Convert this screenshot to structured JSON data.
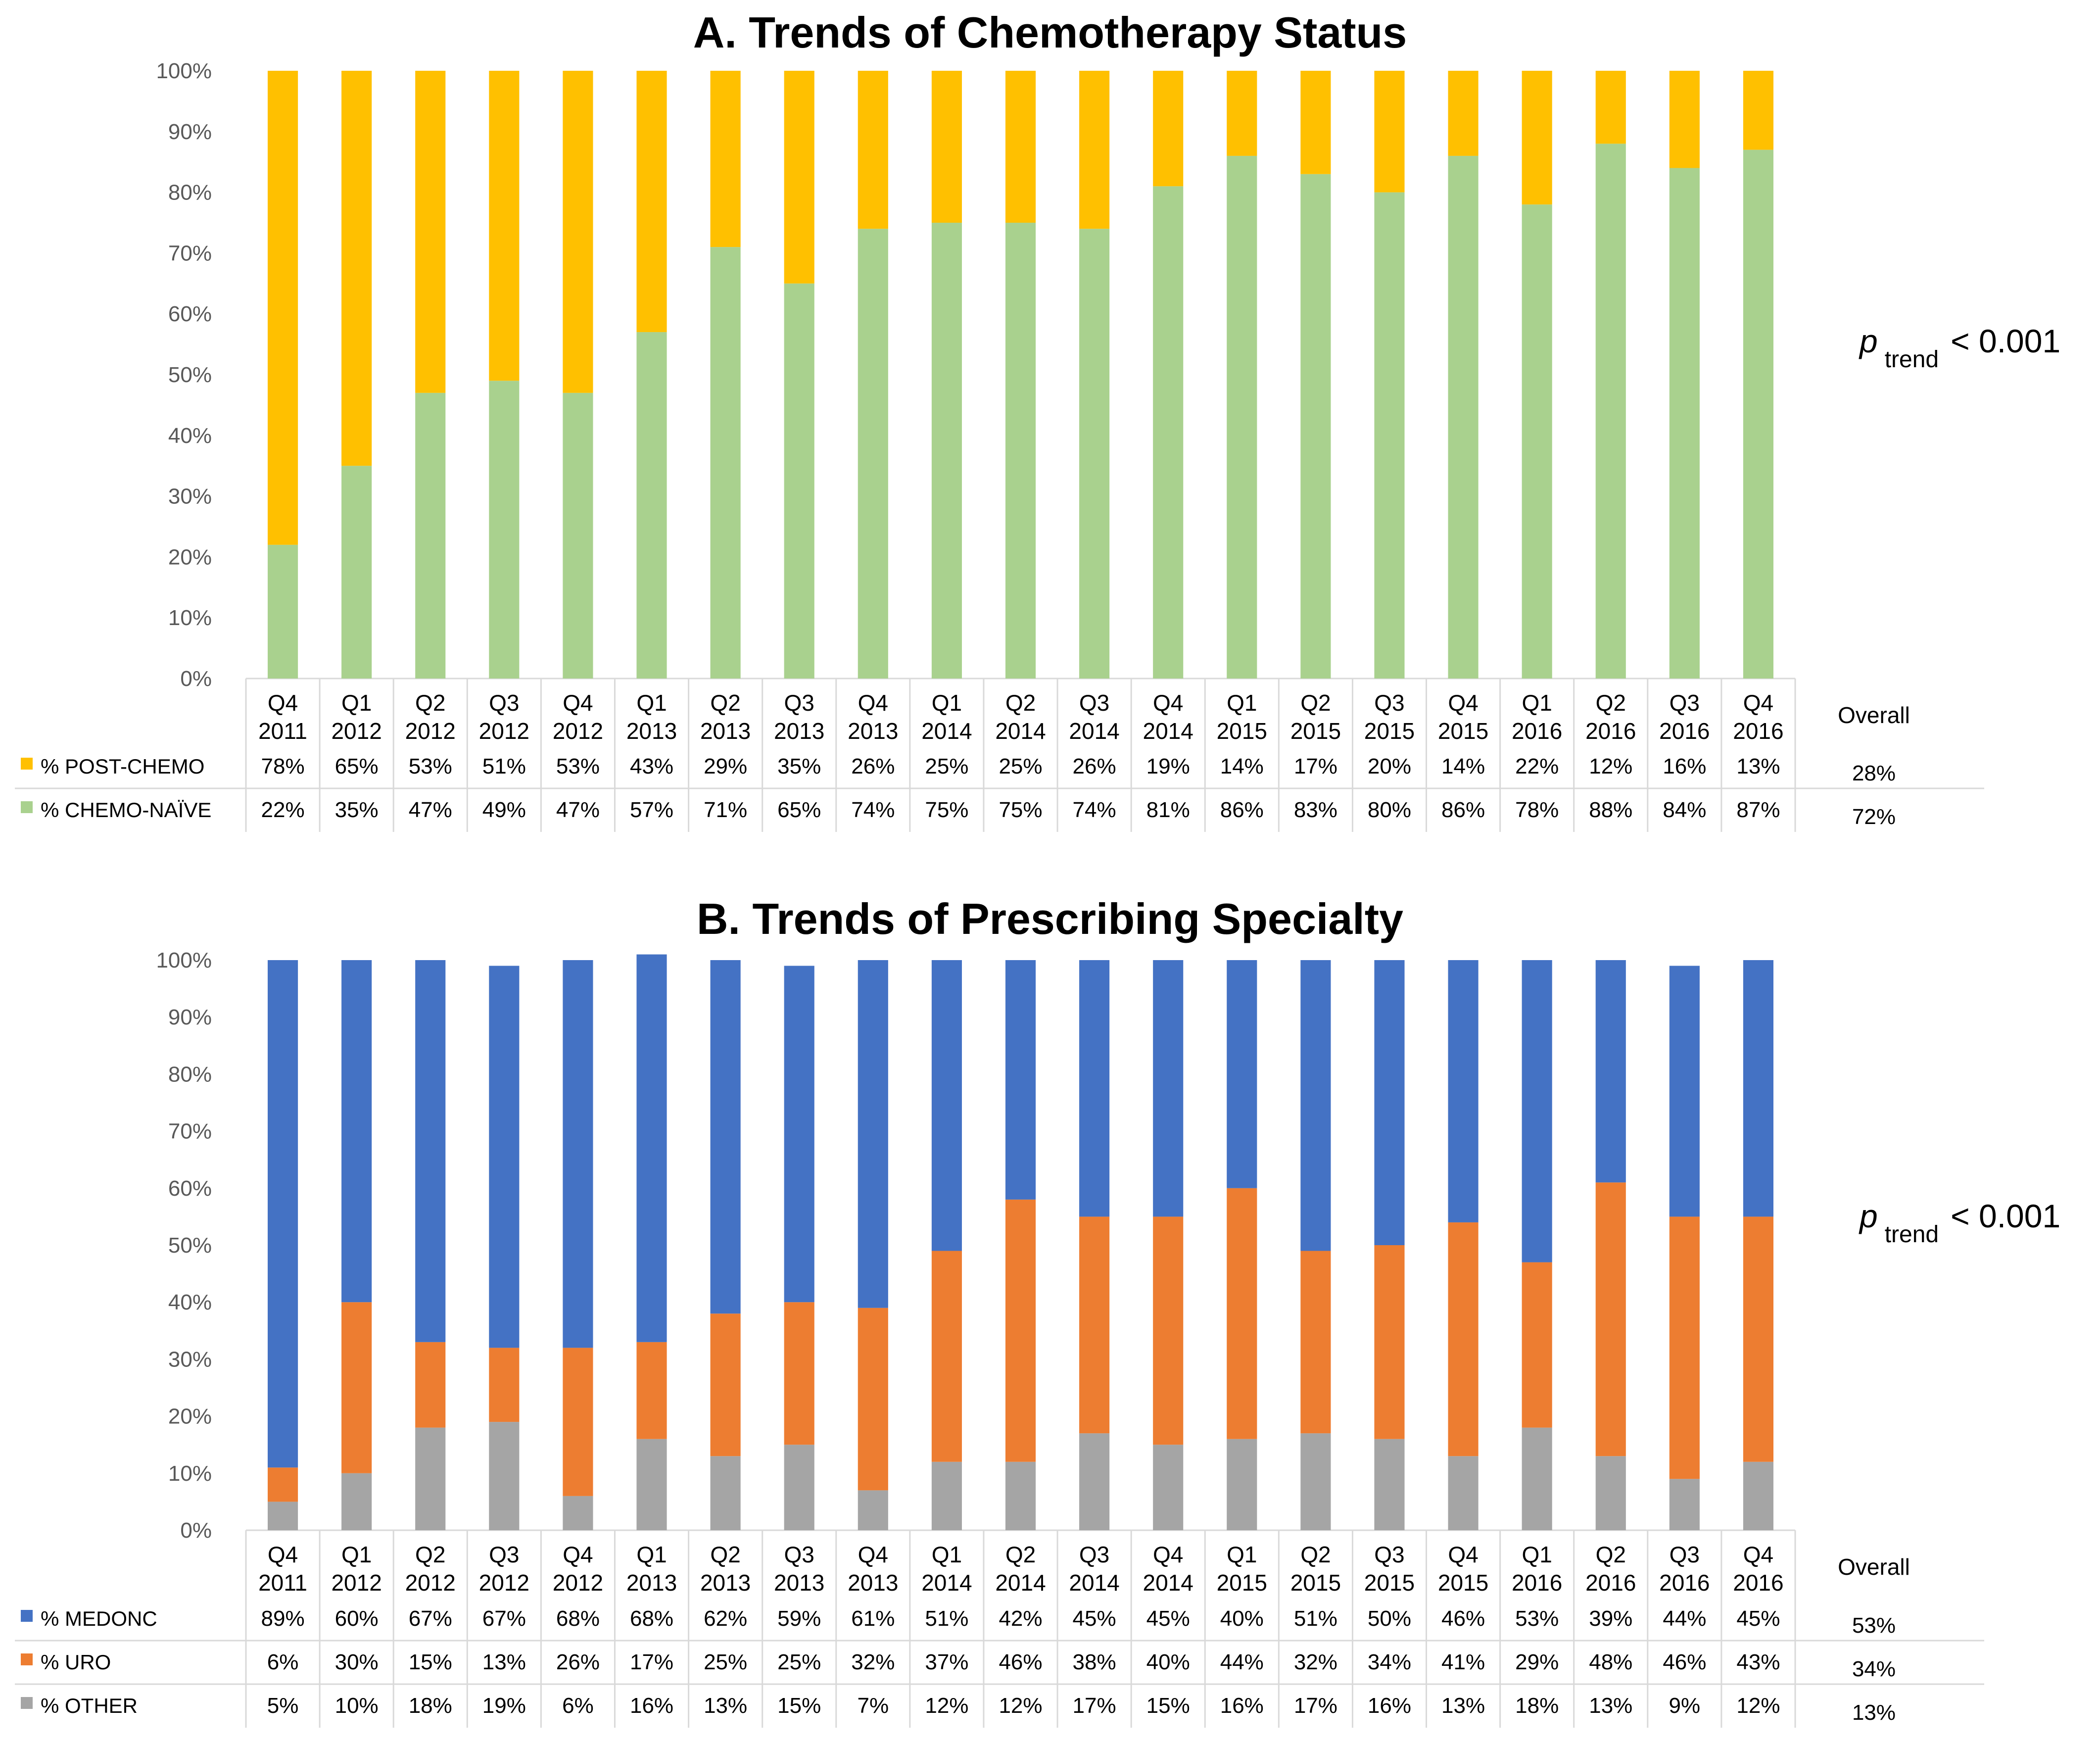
{
  "chart_data": [
    {
      "type": "bar",
      "stacked": true,
      "title": "A. Trends of Chemotherapy Status",
      "categories": [
        [
          "Q4",
          "2011"
        ],
        [
          "Q1",
          "2012"
        ],
        [
          "Q2",
          "2012"
        ],
        [
          "Q3",
          "2012"
        ],
        [
          "Q4",
          "2012"
        ],
        [
          "Q1",
          "2013"
        ],
        [
          "Q2",
          "2013"
        ],
        [
          "Q3",
          "2013"
        ],
        [
          "Q4",
          "2013"
        ],
        [
          "Q1",
          "2014"
        ],
        [
          "Q2",
          "2014"
        ],
        [
          "Q3",
          "2014"
        ],
        [
          "Q4",
          "2014"
        ],
        [
          "Q1",
          "2015"
        ],
        [
          "Q2",
          "2015"
        ],
        [
          "Q3",
          "2015"
        ],
        [
          "Q4",
          "2015"
        ],
        [
          "Q1",
          "2016"
        ],
        [
          "Q2",
          "2016"
        ],
        [
          "Q3",
          "2016"
        ],
        [
          "Q4",
          "2016"
        ]
      ],
      "overall_label": "Overall",
      "y_ticks": [
        "0%",
        "10%",
        "20%",
        "30%",
        "40%",
        "50%",
        "60%",
        "70%",
        "80%",
        "90%",
        "100%"
      ],
      "ylim": [
        0,
        100
      ],
      "series": [
        {
          "name": "% CHEMO-NAÏVE",
          "color": "#a9d18e",
          "values": [
            22,
            35,
            47,
            49,
            47,
            57,
            71,
            65,
            74,
            75,
            75,
            74,
            81,
            86,
            83,
            80,
            86,
            78,
            88,
            84,
            87
          ],
          "overall": "72%"
        },
        {
          "name": "% POST-CHEMO",
          "color": "#ffc000",
          "values": [
            78,
            65,
            53,
            51,
            53,
            43,
            29,
            35,
            26,
            25,
            25,
            26,
            19,
            14,
            17,
            20,
            14,
            22,
            12,
            16,
            13
          ],
          "overall": "28%"
        }
      ],
      "table_order": [
        1,
        0
      ],
      "p_value": {
        "symbol": "p",
        "subscript": "trend",
        "text": "< 0.001"
      }
    },
    {
      "type": "bar",
      "stacked": true,
      "title": "B. Trends of Prescribing Specialty",
      "categories": [
        [
          "Q4",
          "2011"
        ],
        [
          "Q1",
          "2012"
        ],
        [
          "Q2",
          "2012"
        ],
        [
          "Q3",
          "2012"
        ],
        [
          "Q4",
          "2012"
        ],
        [
          "Q1",
          "2013"
        ],
        [
          "Q2",
          "2013"
        ],
        [
          "Q3",
          "2013"
        ],
        [
          "Q4",
          "2013"
        ],
        [
          "Q1",
          "2014"
        ],
        [
          "Q2",
          "2014"
        ],
        [
          "Q3",
          "2014"
        ],
        [
          "Q4",
          "2014"
        ],
        [
          "Q1",
          "2015"
        ],
        [
          "Q2",
          "2015"
        ],
        [
          "Q3",
          "2015"
        ],
        [
          "Q4",
          "2015"
        ],
        [
          "Q1",
          "2016"
        ],
        [
          "Q2",
          "2016"
        ],
        [
          "Q3",
          "2016"
        ],
        [
          "Q4",
          "2016"
        ]
      ],
      "overall_label": "Overall",
      "y_ticks": [
        "0%",
        "10%",
        "20%",
        "30%",
        "40%",
        "50%",
        "60%",
        "70%",
        "80%",
        "90%",
        "100%"
      ],
      "ylim": [
        0,
        100
      ],
      "series": [
        {
          "name": "% OTHER",
          "color": "#a5a5a5",
          "values": [
            5,
            10,
            18,
            19,
            6,
            16,
            13,
            15,
            7,
            12,
            12,
            17,
            15,
            16,
            17,
            16,
            13,
            18,
            13,
            9,
            12
          ],
          "overall": "13%"
        },
        {
          "name": "% URO",
          "color": "#ed7d31",
          "values": [
            6,
            30,
            15,
            13,
            26,
            17,
            25,
            25,
            32,
            37,
            46,
            38,
            40,
            44,
            32,
            34,
            41,
            29,
            48,
            46,
            43
          ],
          "overall": "34%"
        },
        {
          "name": "% MEDONC",
          "color": "#4472c4",
          "values": [
            89,
            60,
            67,
            67,
            68,
            68,
            62,
            59,
            61,
            51,
            42,
            45,
            45,
            40,
            51,
            50,
            46,
            53,
            39,
            44,
            45
          ],
          "overall": "53%"
        }
      ],
      "table_order": [
        2,
        1,
        0
      ],
      "p_value": {
        "symbol": "p",
        "subscript": "trend",
        "text": "< 0.001"
      }
    }
  ]
}
